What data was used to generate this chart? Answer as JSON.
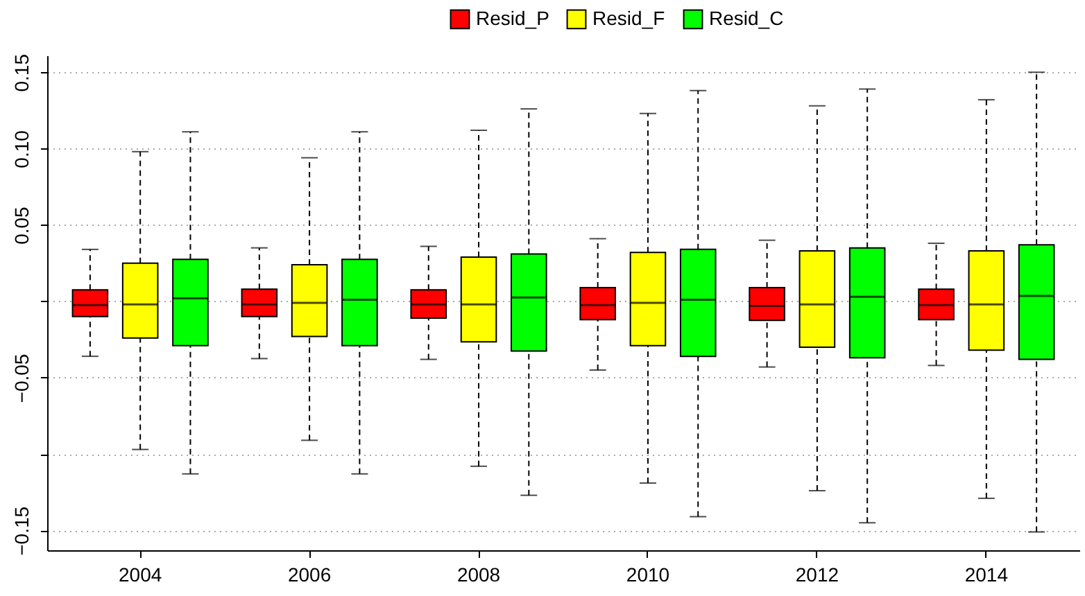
{
  "chart_data": {
    "type": "box",
    "categories": [
      "2004",
      "2006",
      "2008",
      "2010",
      "2012",
      "2014"
    ],
    "ylim": [
      -0.163,
      0.161
    ],
    "yticks": [
      {
        "value": -0.15,
        "label": "−0.15"
      },
      {
        "value": -0.1,
        "label": null
      },
      {
        "value": -0.05,
        "label": "−0.05"
      },
      {
        "value": 0,
        "label": null
      },
      {
        "value": 0.05,
        "label": "0.05"
      },
      {
        "value": 0.1,
        "label": "0.10"
      },
      {
        "value": 0.15,
        "label": "0.15"
      }
    ],
    "grid": "y",
    "legend": "top",
    "line_style": "dashed",
    "series": [
      {
        "name": "Resid_P",
        "color": "#ff0000",
        "boxes": [
          {
            "low": -0.036,
            "q1": -0.01,
            "median": -0.0025,
            "q3": 0.0075,
            "high": 0.034
          },
          {
            "low": -0.0375,
            "q1": -0.01,
            "median": -0.002,
            "q3": 0.008,
            "high": 0.035
          },
          {
            "low": -0.038,
            "q1": -0.011,
            "median": -0.002,
            "q3": 0.0075,
            "high": 0.036
          },
          {
            "low": -0.045,
            "q1": -0.012,
            "median": -0.0025,
            "q3": 0.009,
            "high": 0.041
          },
          {
            "low": -0.043,
            "q1": -0.0125,
            "median": -0.003,
            "q3": 0.009,
            "high": 0.04
          },
          {
            "low": -0.042,
            "q1": -0.012,
            "median": -0.0025,
            "q3": 0.008,
            "high": 0.038
          }
        ]
      },
      {
        "name": "Resid_F",
        "color": "#ffff00",
        "boxes": [
          {
            "low": -0.097,
            "q1": -0.024,
            "median": -0.002,
            "q3": 0.025,
            "high": 0.098
          },
          {
            "low": -0.091,
            "q1": -0.023,
            "median": -0.001,
            "q3": 0.024,
            "high": 0.094
          },
          {
            "low": -0.108,
            "q1": -0.0265,
            "median": -0.002,
            "q3": 0.029,
            "high": 0.112
          },
          {
            "low": -0.119,
            "q1": -0.029,
            "median": -0.001,
            "q3": 0.032,
            "high": 0.123
          },
          {
            "low": -0.124,
            "q1": -0.03,
            "median": -0.002,
            "q3": 0.033,
            "high": 0.128
          },
          {
            "low": -0.129,
            "q1": -0.032,
            "median": -0.002,
            "q3": 0.033,
            "high": 0.132
          }
        ]
      },
      {
        "name": "Resid_C",
        "color": "#00ff00",
        "boxes": [
          {
            "low": -0.113,
            "q1": -0.029,
            "median": 0.002,
            "q3": 0.0275,
            "high": 0.111
          },
          {
            "low": -0.113,
            "q1": -0.029,
            "median": 0.001,
            "q3": 0.0275,
            "high": 0.111
          },
          {
            "low": -0.127,
            "q1": -0.0325,
            "median": 0.0025,
            "q3": 0.031,
            "high": 0.126
          },
          {
            "low": -0.141,
            "q1": -0.036,
            "median": 0.001,
            "q3": 0.034,
            "high": 0.138
          },
          {
            "low": -0.145,
            "q1": -0.037,
            "median": 0.003,
            "q3": 0.035,
            "high": 0.139
          },
          {
            "low": -0.151,
            "q1": -0.038,
            "median": 0.0035,
            "q3": 0.037,
            "high": 0.15
          }
        ]
      }
    ]
  }
}
